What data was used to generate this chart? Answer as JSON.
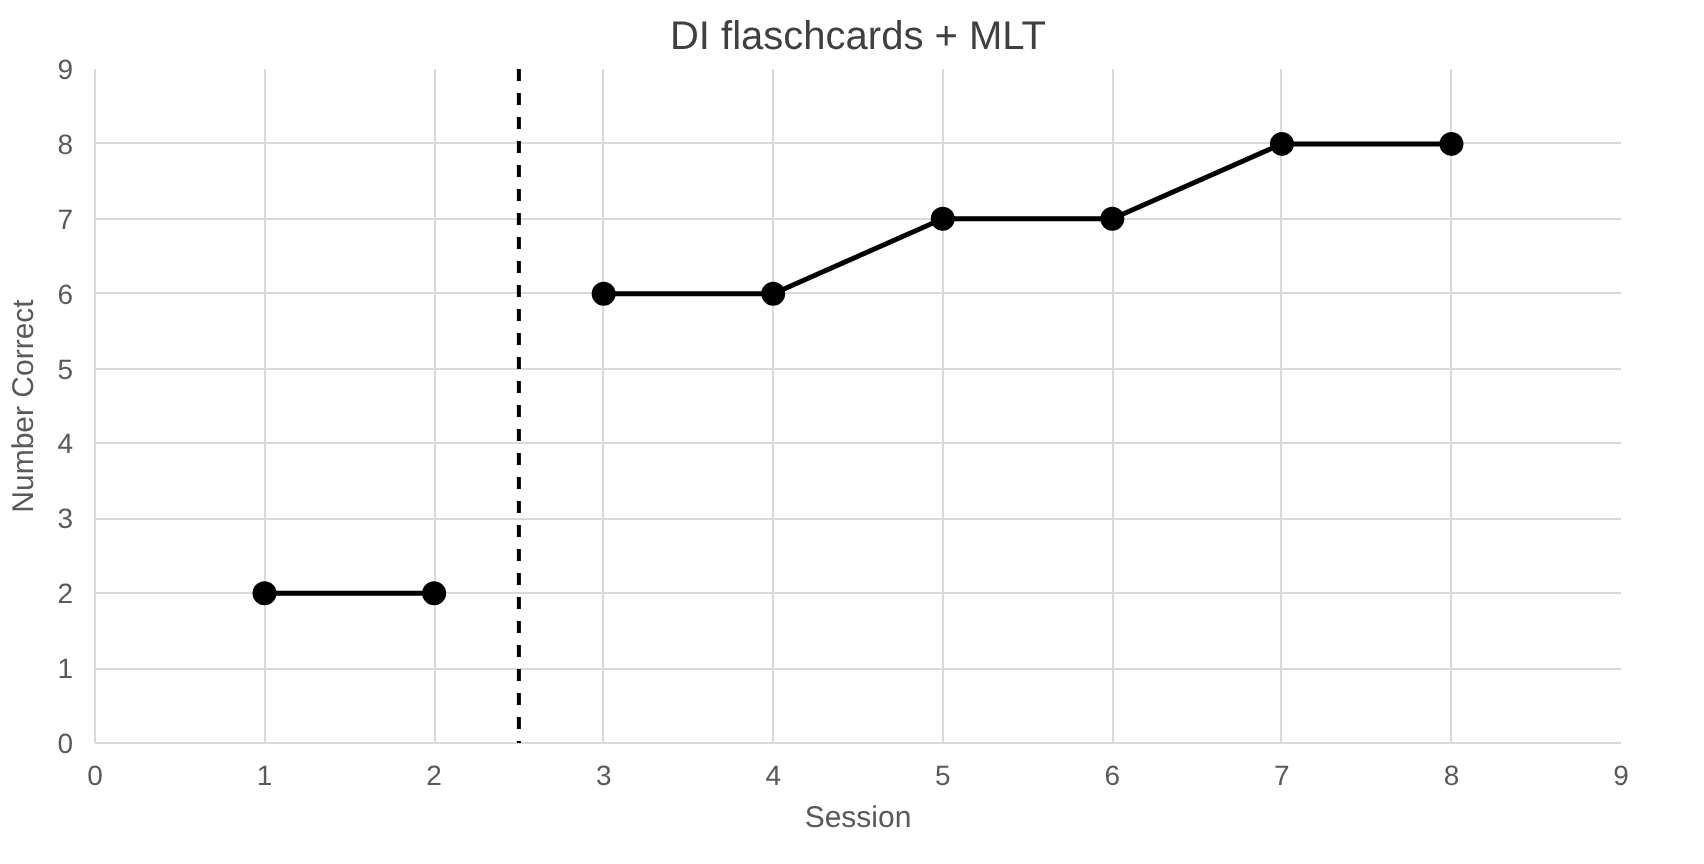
{
  "chart_data": {
    "type": "line",
    "title": "DI flaschcards + MLT",
    "xlabel": "Session",
    "ylabel": "Number Correct",
    "series": [
      {
        "color": "#000000",
        "x": [
          1,
          2
        ],
        "values": [
          2,
          2
        ]
      },
      {
        "color": "#000000",
        "x": [
          3,
          4,
          5,
          6,
          7,
          8
        ],
        "values": [
          6,
          6,
          7,
          7,
          8,
          8
        ]
      }
    ],
    "xlim": [
      0,
      9
    ],
    "ylim": [
      0,
      9
    ],
    "xticks": [
      0,
      1,
      2,
      3,
      4,
      5,
      6,
      7,
      8,
      9
    ],
    "yticks": [
      0,
      1,
      2,
      3,
      4,
      5,
      6,
      7,
      8,
      9
    ],
    "ref_lines": [
      {
        "axis": "x",
        "value": 2.5,
        "color": "#000000",
        "line_style": "dashed"
      }
    ],
    "grid": true,
    "marker": "circle",
    "line_style": "solid"
  }
}
